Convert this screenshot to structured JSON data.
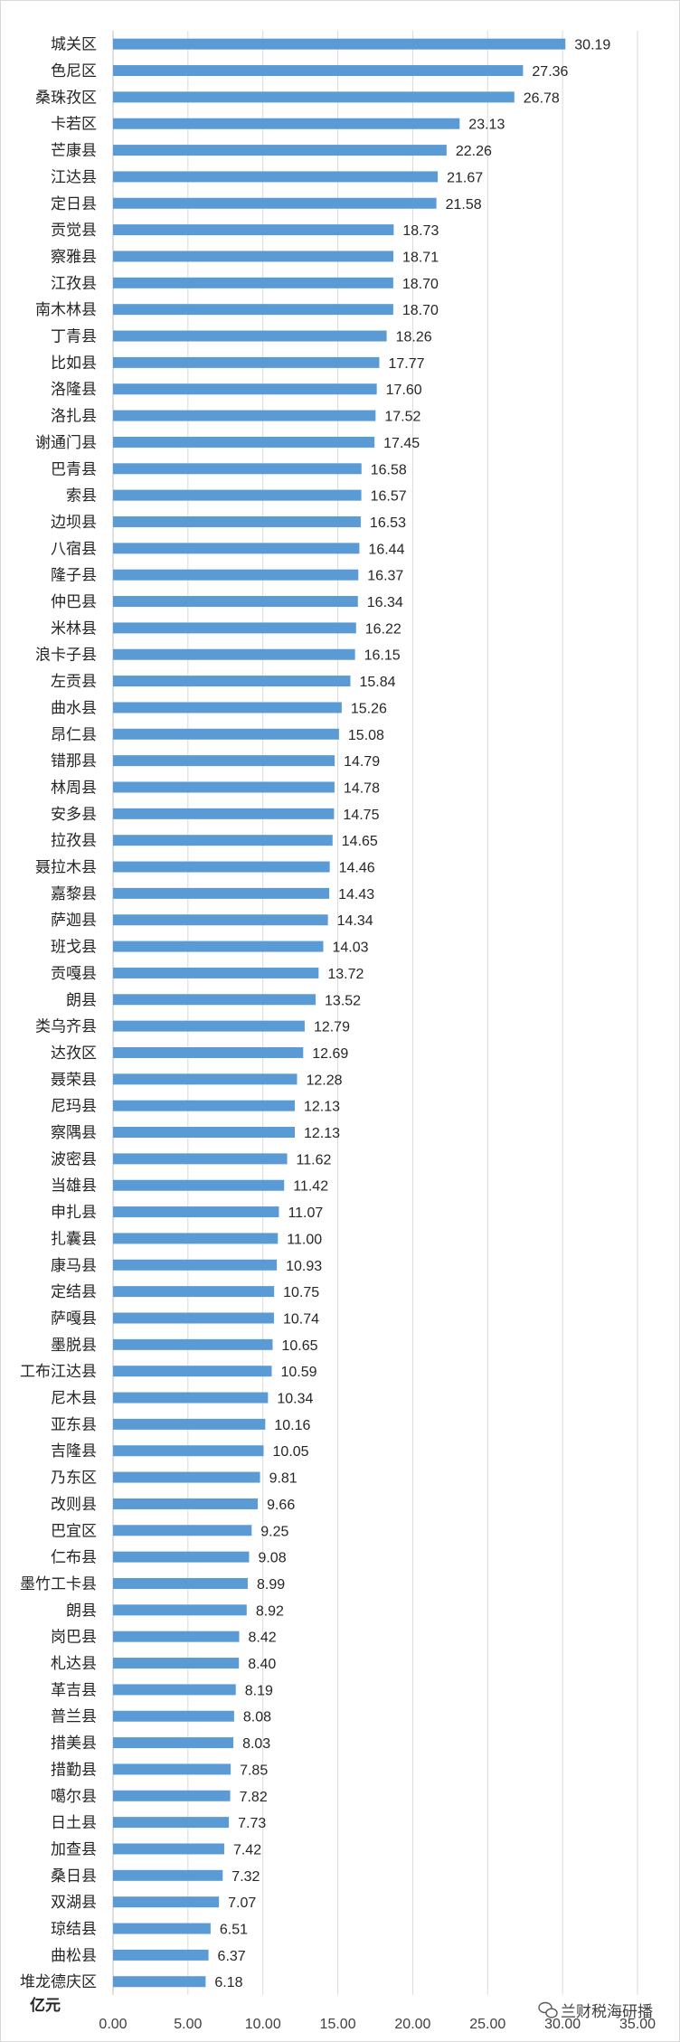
{
  "chart_data": {
    "type": "bar",
    "orientation": "horizontal",
    "unit_label": "亿元",
    "xlim": [
      0,
      35
    ],
    "ticks": [
      "0.00",
      "5.00",
      "10.00",
      "15.00",
      "20.00",
      "25.00",
      "30.00",
      "35.00"
    ],
    "grid": true,
    "bar_color": "#5b9bd5",
    "categories": [
      "城关区",
      "色尼区",
      "桑珠孜区",
      "卡若区",
      "芒康县",
      "江达县",
      "定日县",
      "贡觉县",
      "察雅县",
      "江孜县",
      "南木林县",
      "丁青县",
      "比如县",
      "洛隆县",
      "洛扎县",
      "谢通门县",
      "巴青县",
      "索县",
      "边坝县",
      "八宿县",
      "隆子县",
      "仲巴县",
      "米林县",
      "浪卡子县",
      "左贡县",
      "曲水县",
      "昂仁县",
      "错那县",
      "林周县",
      "安多县",
      "拉孜县",
      "聂拉木县",
      "嘉黎县",
      "萨迦县",
      "班戈县",
      "贡嘎县",
      "朗县",
      "类乌齐县",
      "达孜区",
      "聂荣县",
      "尼玛县",
      "察隅县",
      "波密县",
      "当雄县",
      "申扎县",
      "扎囊县",
      "康马县",
      "定结县",
      "萨嘎县",
      "墨脱县",
      "工布江达县",
      "尼木县",
      "亚东县",
      "吉隆县",
      "乃东区",
      "改则县",
      "巴宜区",
      "仁布县",
      "墨竹工卡县",
      "朗县",
      "岗巴县",
      "札达县",
      "革吉县",
      "普兰县",
      "措美县",
      "措勤县",
      "噶尔县",
      "日土县",
      "加查县",
      "桑日县",
      "双湖县",
      "琼结县",
      "曲松县",
      "堆龙德庆区"
    ],
    "values": [
      30.19,
      27.36,
      26.78,
      23.13,
      22.26,
      21.67,
      21.58,
      18.73,
      18.71,
      18.7,
      18.7,
      18.26,
      17.77,
      17.6,
      17.52,
      17.45,
      16.58,
      16.57,
      16.53,
      16.44,
      16.37,
      16.34,
      16.22,
      16.15,
      15.84,
      15.26,
      15.08,
      14.79,
      14.78,
      14.75,
      14.65,
      14.46,
      14.43,
      14.34,
      14.03,
      13.72,
      13.52,
      12.79,
      12.69,
      12.28,
      12.13,
      12.13,
      11.62,
      11.42,
      11.07,
      11.0,
      10.93,
      10.75,
      10.74,
      10.65,
      10.59,
      10.34,
      10.16,
      10.05,
      9.81,
      9.66,
      9.25,
      9.08,
      8.99,
      8.92,
      8.42,
      8.4,
      8.19,
      8.08,
      8.03,
      7.85,
      7.82,
      7.73,
      7.42,
      7.32,
      7.07,
      6.51,
      6.37,
      6.18
    ],
    "labels": [
      "30.19",
      "27.36",
      "26.78",
      "23.13",
      "22.26",
      "21.67",
      "21.58",
      "18.73",
      "18.71",
      "18.70",
      "18.70",
      "18.26",
      "17.77",
      "17.60",
      "17.52",
      "17.45",
      "16.58",
      "16.57",
      "16.53",
      "16.44",
      "16.37",
      "16.34",
      "16.22",
      "16.15",
      "15.84",
      "15.26",
      "15.08",
      "14.79",
      "14.78",
      "14.75",
      "14.65",
      "14.46",
      "14.43",
      "14.34",
      "14.03",
      "13.72",
      "13.52",
      "12.79",
      "12.69",
      "12.28",
      "12.13",
      "12.13",
      "11.62",
      "11.42",
      "11.07",
      "11.00",
      "10.93",
      "10.75",
      "10.74",
      "10.65",
      "10.59",
      "10.34",
      "10.16",
      "10.05",
      "9.81",
      "9.66",
      "9.25",
      "9.08",
      "8.99",
      "8.92",
      "8.42",
      "8.40",
      "8.19",
      "8.08",
      "8.03",
      "7.85",
      "7.82",
      "7.73",
      "7.42",
      "7.32",
      "7.07",
      "6.51",
      "6.37",
      "6.18"
    ]
  },
  "watermark": {
    "text": "兰财税海研播"
  }
}
